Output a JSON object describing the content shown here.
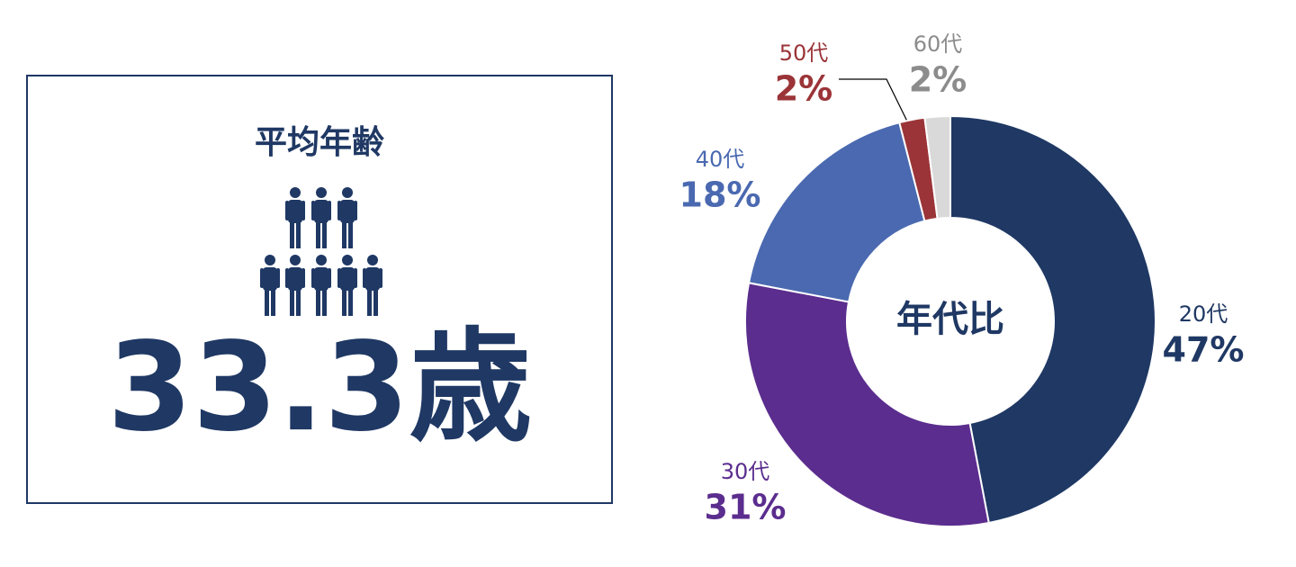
{
  "card": {
    "title": "平均年齢",
    "value": "33.3歳"
  },
  "chart_data": {
    "type": "donut",
    "title": "年代比",
    "categories": [
      "20代",
      "30代",
      "40代",
      "50代",
      "60代"
    ],
    "values": [
      47,
      31,
      18,
      2,
      2
    ],
    "value_labels": [
      "47%",
      "31%",
      "18%",
      "2%",
      "2%"
    ],
    "colors": [
      "#1f3864",
      "#5b2d8e",
      "#4a69b0",
      "#9b3438",
      "#d9d9d9"
    ],
    "label_colors": [
      "#1f3864",
      "#5b2d8e",
      "#4a69b0",
      "#9b3438",
      "#8c8c8c"
    ]
  }
}
